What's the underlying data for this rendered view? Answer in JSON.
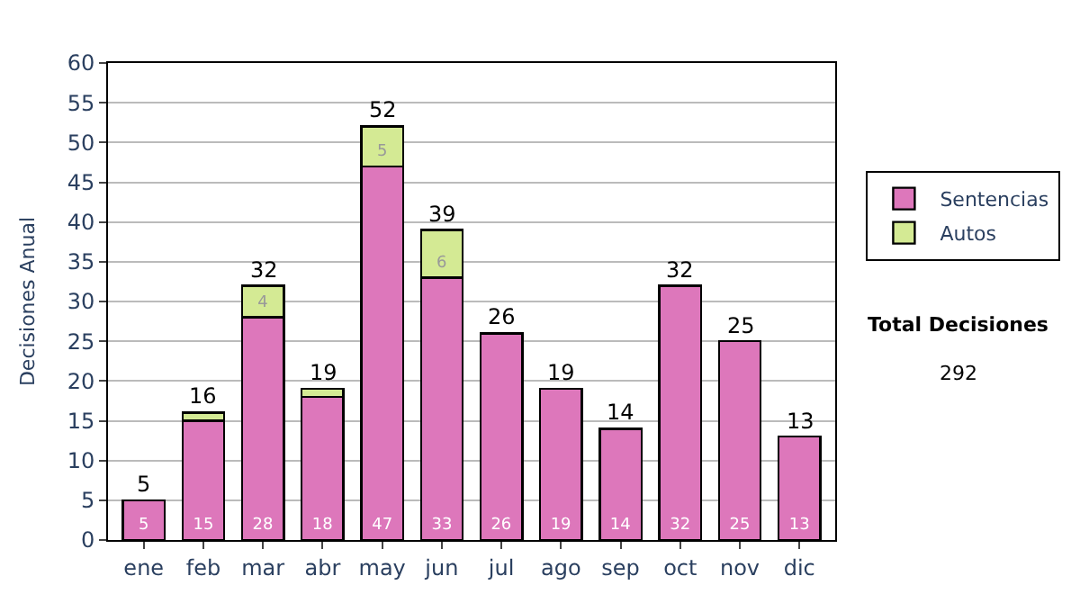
{
  "chart_data": {
    "type": "bar",
    "stacked": true,
    "ylabel": "Decisiones Anual",
    "categories": [
      "ene",
      "feb",
      "mar",
      "abr",
      "may",
      "jun",
      "jul",
      "ago",
      "sep",
      "oct",
      "nov",
      "dic"
    ],
    "series": [
      {
        "name": "Sentencias",
        "color": "#dd77bb",
        "values": [
          5,
          15,
          28,
          18,
          47,
          33,
          26,
          19,
          14,
          32,
          25,
          13
        ],
        "value_labels": [
          "5",
          "15",
          "28",
          "18",
          "47",
          "33",
          "26",
          "19",
          "14",
          "32",
          "25",
          "13"
        ]
      },
      {
        "name": "Autos",
        "color": "#d4ea94",
        "values": [
          null,
          1,
          4,
          1,
          5,
          6,
          null,
          null,
          null,
          null,
          null,
          null
        ],
        "value_labels": [
          null,
          null,
          "4",
          null,
          "5",
          "6",
          null,
          null,
          null,
          null,
          null,
          null
        ]
      }
    ],
    "totals": [
      "5",
      "16",
      "32",
      "19",
      "52",
      "39",
      "26",
      "19",
      "14",
      "32",
      "25",
      "13"
    ],
    "ylim": [
      0,
      60
    ],
    "yticks": [
      0,
      5,
      10,
      15,
      20,
      25,
      30,
      35,
      40,
      45,
      50,
      55,
      60
    ],
    "grid": "y",
    "legend": "right",
    "annotations": [
      "Total Decisiones",
      "292"
    ]
  }
}
